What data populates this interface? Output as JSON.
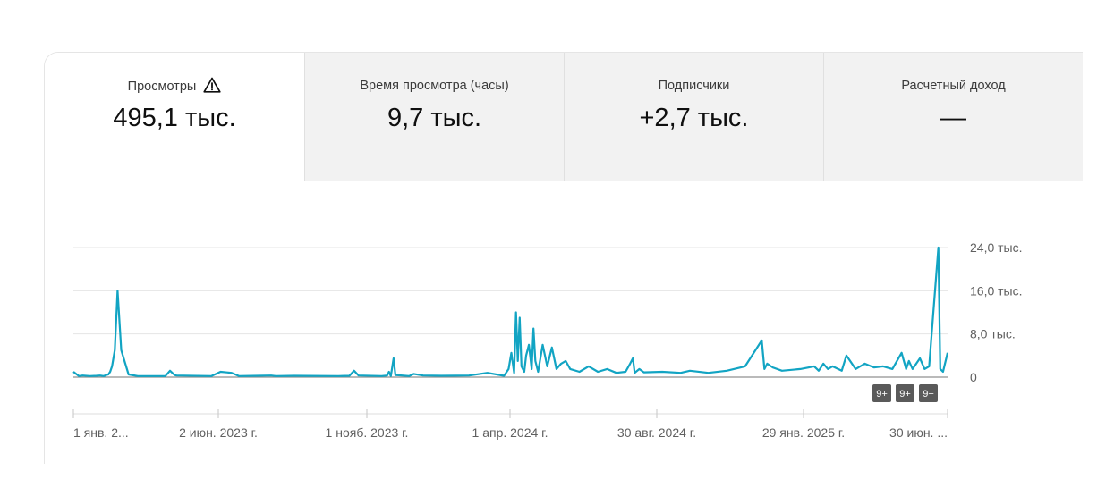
{
  "metrics": [
    {
      "label": "Просмотры",
      "value": "495,1 тыс.",
      "warning": true
    },
    {
      "label": "Время просмотра (часы)",
      "value": "9,7 тыс."
    },
    {
      "label": "Подписчики",
      "value": "+2,7 тыс."
    },
    {
      "label": "Расчетный доход",
      "value": "—"
    }
  ],
  "badges": [
    "9+",
    "9+",
    "9+"
  ],
  "chart_data": {
    "type": "line",
    "series": [
      {
        "color": "#12a4c3"
      }
    ],
    "x_tick_labels": [
      "1 янв. 2...",
      "2 июн. 2023 г.",
      "1 нояб. 2023 г.",
      "1 апр. 2024 г.",
      "30 авг. 2024 г.",
      "29 янв. 2025 г.",
      "30 июн. ..."
    ],
    "y_tick_labels": [
      "0",
      "8,0 тыс.",
      "16,0 тыс.",
      "24,0 тыс."
    ],
    "y_ticks": [
      0,
      8000,
      16000,
      24000
    ],
    "ylim": [
      0,
      24000
    ],
    "x_range_days": 950,
    "grid": true,
    "x": [
      0,
      3,
      6,
      10,
      18,
      25,
      29,
      33,
      36,
      38,
      40,
      42,
      45,
      48,
      52,
      60,
      70,
      100,
      105,
      110,
      112,
      150,
      160,
      172,
      180,
      200,
      215,
      220,
      240,
      288,
      300,
      305,
      310,
      335,
      341,
      343,
      345,
      348,
      350,
      365,
      370,
      380,
      400,
      430,
      450,
      468,
      473,
      476,
      479,
      481,
      483,
      485,
      487,
      490,
      492,
      495,
      498,
      500,
      502,
      505,
      510,
      515,
      520,
      525,
      530,
      535,
      540,
      550,
      560,
      570,
      580,
      590,
      600,
      605,
      608,
      610,
      615,
      620,
      640,
      660,
      670,
      690,
      710,
      730,
      748,
      751,
      754,
      760,
      770,
      790,
      805,
      810,
      815,
      820,
      825,
      835,
      840,
      850,
      860,
      870,
      880,
      890,
      900,
      905,
      908,
      912,
      920,
      925,
      930,
      940,
      942,
      945,
      950
    ],
    "y": [
      1000,
      600,
      200,
      300,
      200,
      250,
      300,
      200,
      400,
      500,
      1000,
      2000,
      5000,
      16000,
      5000,
      500,
      200,
      200,
      1200,
      400,
      300,
      200,
      1000,
      800,
      200,
      250,
      300,
      200,
      250,
      200,
      250,
      1200,
      300,
      200,
      300,
      1000,
      200,
      3500,
      400,
      200,
      600,
      300,
      250,
      300,
      800,
      250,
      1500,
      4500,
      800,
      12000,
      3000,
      11000,
      2000,
      1000,
      4000,
      6000,
      1500,
      9000,
      3000,
      1000,
      6000,
      2000,
      5500,
      1500,
      2500,
      3000,
      1500,
      1000,
      2000,
      1000,
      1500,
      800,
      1000,
      2500,
      3500,
      800,
      1500,
      900,
      1000,
      800,
      1200,
      800,
      1200,
      2000,
      6800,
      1500,
      2500,
      1800,
      1200,
      1500,
      2000,
      1200,
      2500,
      1500,
      2000,
      1200,
      4000,
      1500,
      2500,
      1800,
      2000,
      1500,
      4500,
      1500,
      3000,
      1500,
      3500,
      1500,
      2000,
      24000,
      1500,
      1000,
      4500
    ]
  }
}
